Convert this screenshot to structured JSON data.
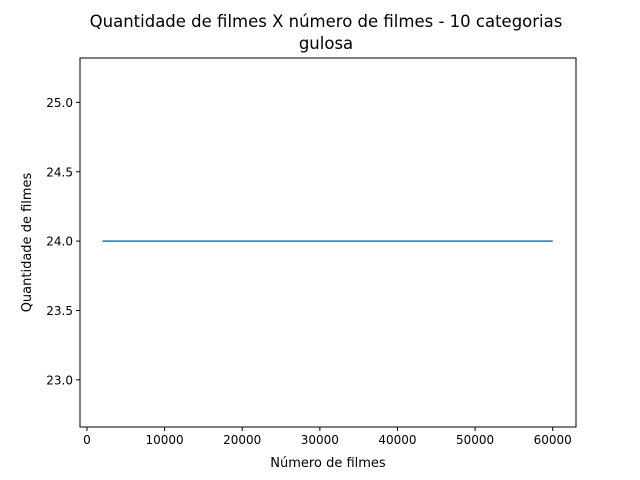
{
  "chart_data": {
    "type": "line",
    "title": "Quantidade de filmes X número de filmes - 10 categorias",
    "subtitle": "gulosa",
    "xlabel": "Número de filmes",
    "ylabel": "Quantidade de filmes",
    "xlim": [
      -900,
      63000
    ],
    "ylim": [
      22.66,
      25.32
    ],
    "x_ticks": [
      0,
      10000,
      20000,
      30000,
      40000,
      50000,
      60000
    ],
    "x_tick_labels": [
      "0",
      "10000",
      "20000",
      "30000",
      "40000",
      "50000",
      "60000"
    ],
    "y_ticks": [
      23.0,
      23.5,
      24.0,
      24.5,
      25.0
    ],
    "y_tick_labels": [
      "23.0",
      "23.5",
      "24.0",
      "24.5",
      "25.0"
    ],
    "grid": false,
    "legend": "none",
    "series": [
      {
        "color": "#1f77b4",
        "x": [
          2000,
          60000
        ],
        "y": [
          24.0,
          24.0
        ]
      }
    ]
  }
}
